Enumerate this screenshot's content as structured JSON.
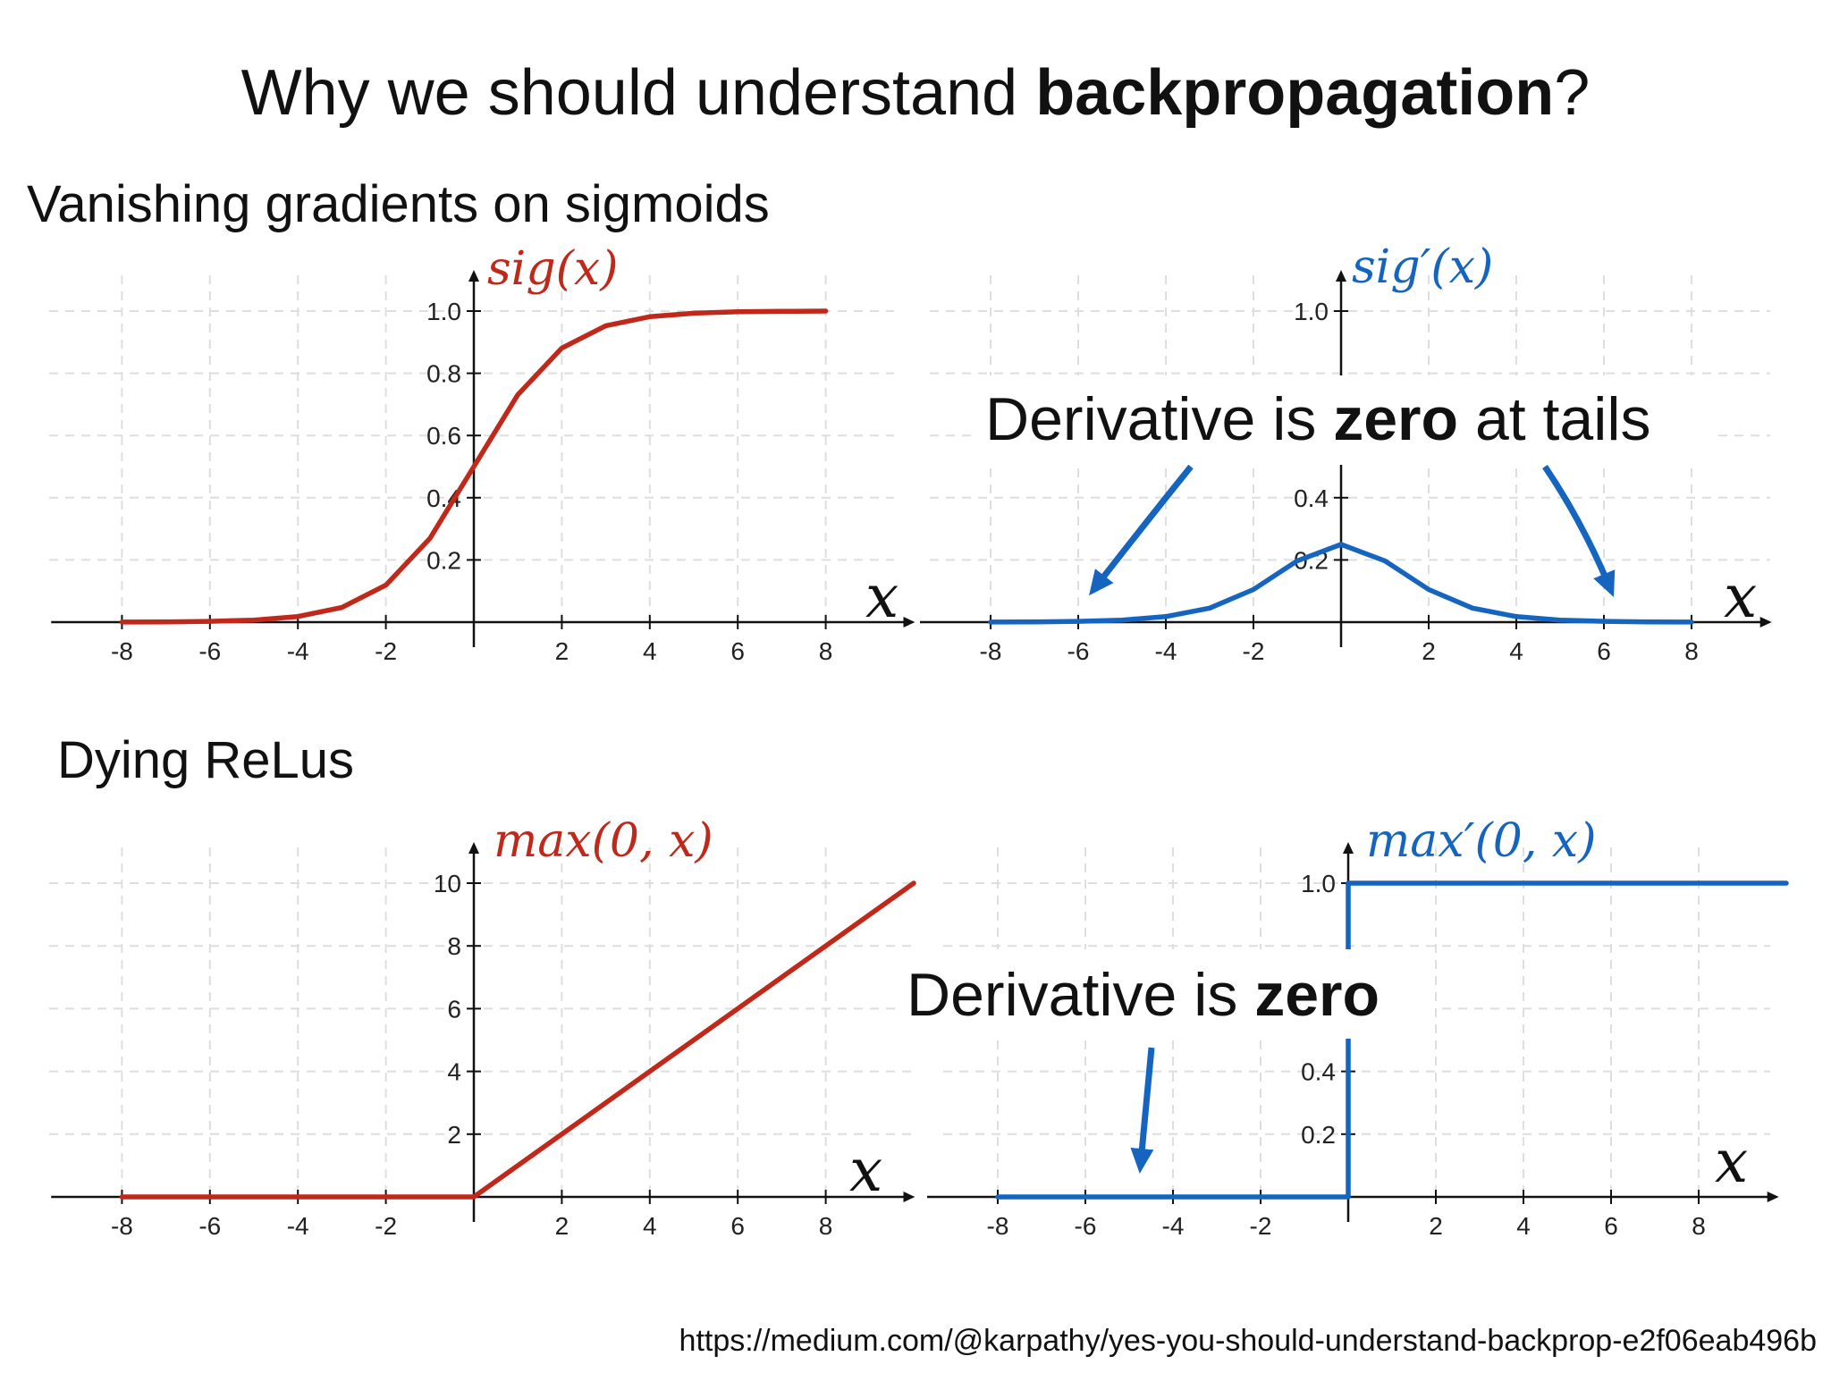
{
  "title": {
    "prefix": "Why we should understand ",
    "bold": "backpropagation",
    "suffix": "?"
  },
  "sections": {
    "sigmoid": "Vanishing gradients on sigmoids",
    "relu": "Dying ReLus"
  },
  "source": "https://medium.com/@karpathy/yes-you-should-understand-backprop-e2f06eab496b",
  "colors": {
    "red": "#c0281a",
    "blue": "#1565c0",
    "grid": "#dedede",
    "axis": "#111111"
  },
  "callouts": {
    "sigmoid": {
      "prefix": "Derivative is ",
      "bold": "zero",
      "suffix": " at tails"
    },
    "relu": {
      "prefix": "Derivative is ",
      "bold": "zero",
      "suffix": ""
    }
  },
  "chart_data": [
    {
      "type": "line",
      "function": "sig(x)",
      "series": [
        {
          "name": "sig(x)",
          "color": "#c0281a",
          "x": [
            -8,
            -7,
            -6,
            -5,
            -4,
            -3,
            -2,
            -1,
            0,
            1,
            2,
            3,
            4,
            5,
            6,
            7,
            8
          ],
          "y": [
            0.0003,
            0.0009,
            0.0025,
            0.0067,
            0.018,
            0.047,
            0.119,
            0.269,
            0.5,
            0.731,
            0.881,
            0.953,
            0.982,
            0.993,
            0.998,
            0.999,
            1.0
          ]
        }
      ],
      "xlabel": "x",
      "xticks": [
        "-8",
        "-6",
        "-4",
        "-2",
        "2",
        "4",
        "6",
        "8"
      ],
      "yticks": [
        "0.2",
        "0.4",
        "0.6",
        "0.8",
        "1.0"
      ],
      "ylim": [
        0,
        1.0
      ],
      "grid": true
    },
    {
      "type": "line",
      "function": "sig′(x)",
      "series": [
        {
          "name": "sig′(x)",
          "color": "#1565c0",
          "x": [
            -8,
            -7,
            -6,
            -5,
            -4,
            -3,
            -2,
            -1,
            0,
            1,
            2,
            3,
            4,
            5,
            6,
            7,
            8
          ],
          "y": [
            0.0003,
            0.0009,
            0.0025,
            0.0066,
            0.0177,
            0.0452,
            0.105,
            0.197,
            0.25,
            0.197,
            0.105,
            0.0452,
            0.0177,
            0.0066,
            0.0025,
            0.0009,
            0.0003
          ]
        }
      ],
      "xlabel": "x",
      "xticks": [
        "-8",
        "-6",
        "-4",
        "-2",
        "2",
        "4",
        "6",
        "8"
      ],
      "yticks": [
        "0.2",
        "0.4",
        "1.0"
      ],
      "ylim": [
        0,
        1.0
      ],
      "grid": true
    },
    {
      "type": "line",
      "function": "max(0, x)",
      "series": [
        {
          "name": "max(0, x)",
          "color": "#c0281a",
          "x": [
            -8,
            0,
            10
          ],
          "y": [
            0,
            0,
            10
          ]
        }
      ],
      "xlabel": "x",
      "xticks": [
        "-8",
        "-6",
        "-4",
        "-2",
        "2",
        "4",
        "6",
        "8"
      ],
      "yticks": [
        "2",
        "4",
        "6",
        "8",
        "10"
      ],
      "ylim": [
        0,
        10
      ],
      "grid": true
    },
    {
      "type": "line",
      "function": "max′(0, x)",
      "series": [
        {
          "name": "max′(0, x)",
          "color": "#1565c0",
          "x": [
            -8,
            0,
            0,
            10
          ],
          "y": [
            0,
            0,
            1,
            1
          ]
        }
      ],
      "xlabel": "x",
      "xticks": [
        "-8",
        "-6",
        "-4",
        "-2",
        "2",
        "4",
        "6",
        "8"
      ],
      "yticks": [
        "0.2",
        "0.4",
        "1.0"
      ],
      "ylim": [
        0,
        1.0
      ],
      "grid": true
    }
  ]
}
